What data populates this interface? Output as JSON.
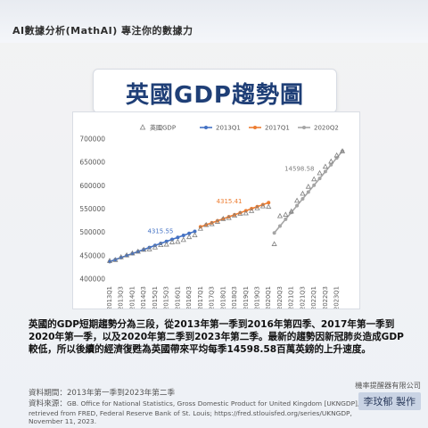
{
  "header": {
    "brand": "AI數據分析(MathAI) 專注你的數據力"
  },
  "title": "英國GDP趨勢圖",
  "description": "英國的GDP短期趨勢分為三段，從2013年第一季到2016年第四季、2017年第一季到2020年第一季，以及2020年第二季到2023年第二季。最新的趨勢因新冠肺炎造成GDP較低，所以後續的經濟復甦為英國帶來平均每季14598.58百萬英鎊的上升速度。",
  "footer": {
    "period": "資料期間：2013年第一季到2023年第二季",
    "source_label": "資料來源：",
    "source_lines": [
      "GB. Office for National Statistics, Gross Domestic Product for United Kingdom [UKNGDP],",
      "retrieved from FRED, Federal Reserve Bank of St. Louis; https://fred.stlouisfed.org/series/UKNGDP,",
      "November 11, 2023."
    ],
    "company": "機率提醒器有限公司",
    "maker": "李玟郁  製作"
  },
  "colors": {
    "seg1": "#4472c4",
    "seg2": "#ed7d31",
    "seg3": "#a5a5a5",
    "actual": "#7f7f7f",
    "seg1_label": "#4472c4",
    "seg2_label": "#ed7d31",
    "seg3_label": "#7f7f7f"
  },
  "chart_data": {
    "type": "line",
    "ylim": [
      400000,
      700000
    ],
    "yticks": [
      400000,
      450000,
      500000,
      550000,
      600000,
      650000,
      700000
    ],
    "grid": false,
    "legend_position": "top",
    "categories": [
      "2013Q1",
      "2013Q2",
      "2013Q3",
      "2013Q4",
      "2014Q1",
      "2014Q2",
      "2014Q3",
      "2014Q4",
      "2015Q1",
      "2015Q2",
      "2015Q3",
      "2015Q4",
      "2016Q1",
      "2016Q2",
      "2016Q3",
      "2016Q4",
      "2017Q1",
      "2017Q2",
      "2017Q3",
      "2017Q4",
      "2018Q1",
      "2018Q2",
      "2018Q3",
      "2018Q4",
      "2019Q1",
      "2019Q2",
      "2019Q3",
      "2019Q4",
      "2020Q1",
      "2020Q2",
      "2020Q3",
      "2020Q4",
      "2021Q1",
      "2021Q2",
      "2021Q3",
      "2021Q4",
      "2022Q1",
      "2022Q2",
      "2022Q3",
      "2022Q4",
      "2023Q1",
      "2023Q2"
    ],
    "tick_labels": [
      "2013Q1",
      "2013Q3",
      "2014Q1",
      "2014Q3",
      "2015Q1",
      "2015Q3",
      "2016Q1",
      "2016Q3",
      "2017Q1",
      "2017Q3",
      "2018Q1",
      "2018Q3",
      "2019Q1",
      "2019Q3",
      "2020Q1",
      "2020Q3",
      "2021Q1",
      "2021Q3",
      "2022Q1",
      "2022Q3",
      "2023Q1"
    ],
    "actual": {
      "name": "英國GDP",
      "values": [
        439000,
        441000,
        447000,
        451000,
        455000,
        459000,
        463000,
        464000,
        468000,
        473000,
        474000,
        479000,
        480000,
        484000,
        490000,
        494000,
        508000,
        516000,
        518000,
        523000,
        529000,
        531000,
        536000,
        540000,
        541000,
        546000,
        552000,
        556000,
        555000,
        475000,
        535000,
        538000,
        545000,
        568000,
        583000,
        598000,
        614000,
        627000,
        641000,
        652000,
        665000,
        674000
      ]
    },
    "trend_series": [
      {
        "name": "2013Q1",
        "start": 0,
        "values": [
          437500,
          441816,
          446131,
          450447,
          454762,
          459078,
          463393,
          467709,
          472024,
          476340,
          480655,
          484971,
          489286,
          493602,
          497917,
          502233
        ],
        "label": "4315.55"
      },
      {
        "name": "2017Q1",
        "start": 16,
        "values": [
          512000,
          516315,
          520631,
          524946,
          529262,
          533577,
          537892,
          542208,
          546523,
          550839,
          555154,
          559469,
          563785
        ],
        "label": "4315.41"
      },
      {
        "name": "2020Q2",
        "start": 29,
        "values": [
          499000,
          513599,
          528197,
          542796,
          557394,
          571993,
          586592,
          601190,
          615789,
          630387,
          644986,
          659585,
          674183
        ],
        "label": "14598.58"
      }
    ]
  }
}
